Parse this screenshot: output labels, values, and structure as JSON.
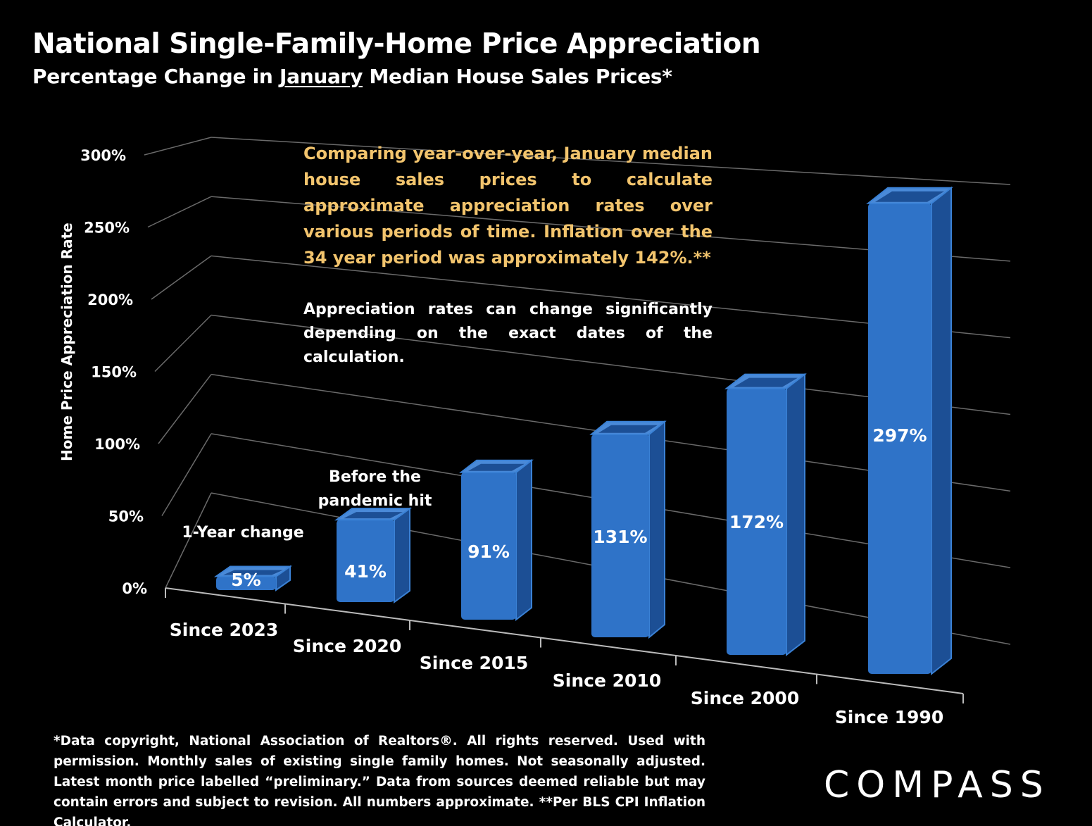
{
  "page": {
    "title": "National Single-Family-Home Price Appreciation",
    "subtitle_pre": "Percentage Change in ",
    "subtitle_underlined": "January",
    "subtitle_post": " Median House Sales Prices*",
    "note_highlight": "Comparing year-over-year, January median house sales prices to calculate approximate appreciation rates over various periods of time. Inflation over the 34 year period was approximately 142%.**",
    "note_secondary": "Appreciation rates can change significantly depending on the exact dates of the calculation.",
    "annotation_1yr": "1-Year change",
    "annotation_pandemic_line1": "Before the",
    "annotation_pandemic_line2": "pandemic hit",
    "footnote": "*Data copyright, National Association of Realtors®. All rights reserved. Used with permission. Monthly sales of existing single family homes. Not seasonally adjusted. Latest month price labelled “preliminary.” Data from sources deemed reliable but may contain errors and subject to revision. All numbers  approximate. **Per BLS CPI Inflation Calculator.",
    "logo": "COMPASS"
  },
  "colors": {
    "background": "#000000",
    "bar_front": "#2f73c8",
    "bar_side": "#1c4f95",
    "bar_top": "#4a8ad8",
    "note_highlight": "#f2c46d",
    "grid": "#6a6a6a"
  },
  "chart_data": {
    "type": "bar",
    "title": "National Single-Family-Home Price Appreciation",
    "ylabel": "Home Price Appreciation Rate",
    "xlabel": "",
    "categories": [
      "Since 2023",
      "Since 2020",
      "Since 2015",
      "Since 2010",
      "Since 2000",
      "Since 1990"
    ],
    "values": [
      5,
      41,
      91,
      131,
      172,
      297
    ],
    "value_labels": [
      "5%",
      "41%",
      "91%",
      "131%",
      "172%",
      "297%"
    ],
    "ylim": [
      0,
      300
    ],
    "yticks": [
      0,
      50,
      100,
      150,
      200,
      250,
      300
    ],
    "ytick_labels": [
      "0%",
      "50%",
      "100%",
      "150%",
      "200%",
      "250%",
      "300%"
    ],
    "grid": true
  }
}
